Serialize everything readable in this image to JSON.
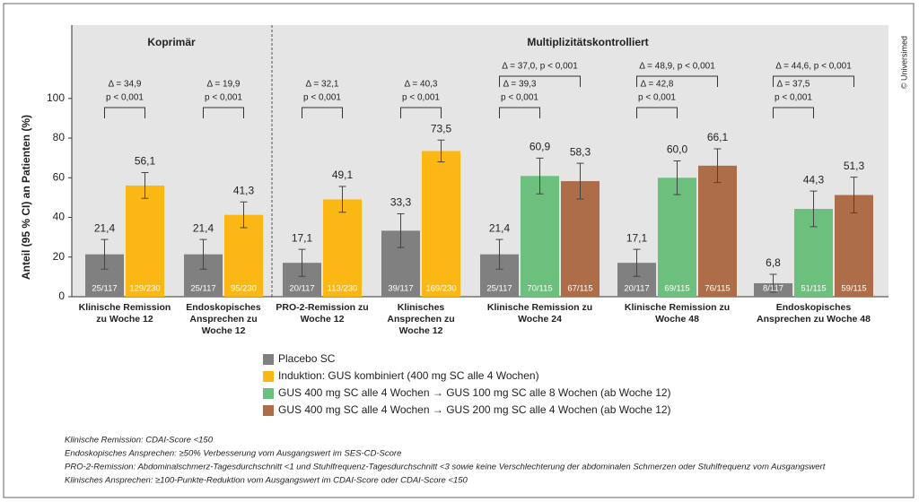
{
  "chart_data": {
    "type": "bar",
    "sections": [
      "Koprimär",
      "Multiplizitätskontrolliert"
    ],
    "ylabel": "Anteil (95 % CI) an Patienten (%)",
    "ylim": [
      0,
      137
    ],
    "yticks": [
      0,
      20,
      40,
      60,
      80,
      100
    ],
    "categories": [
      "Klinische Remission zu Woche 12",
      "Endoskopisches Ansprechen zu Woche 12",
      "PRO-2-Remission zu Woche 12",
      "Klinisches Ansprechen zu Woche 12",
      "Klinische Remission zu Woche 24",
      "Klinische Remission zu Woche 48",
      "Endoskopisches Ansprechen zu Woche 48"
    ],
    "series": [
      {
        "name": "Placebo SC",
        "color": "#808080",
        "values": [
          21.4,
          21.4,
          17.1,
          33.3,
          21.4,
          17.1,
          6.8
        ],
        "value_labels": [
          "21,4",
          "21,4",
          "17,1",
          "33,3",
          "21,4",
          "17,1",
          "6,8"
        ],
        "errors": [
          7.5,
          7.5,
          6.8,
          8.5,
          7.5,
          6.8,
          4.5
        ],
        "counts": [
          "25/117",
          "25/117",
          "20/117",
          "39/117",
          "25/117",
          "20/117",
          "8/117"
        ]
      },
      {
        "name": "Induktion: GUS kombiniert (400 mg SC alle 4 Wochen)",
        "color": "#fbb814",
        "values": [
          56.1,
          41.3,
          49.1,
          73.5,
          null,
          null,
          null
        ],
        "value_labels": [
          "56,1",
          "41,3",
          "49,1",
          "73,5",
          null,
          null,
          null
        ],
        "errors": [
          6.5,
          6.5,
          6.5,
          5.5,
          null,
          null,
          null
        ],
        "counts": [
          "129/230",
          "95/230",
          "113/230",
          "169/230",
          null,
          null,
          null
        ]
      },
      {
        "name": "GUS 400 mg SC alle 4 Wochen → GUS 100 mg SC alle 8 Wochen (ab Woche 12)",
        "color": "#6cbf7d",
        "values": [
          null,
          null,
          null,
          null,
          60.9,
          60.0,
          44.3
        ],
        "value_labels": [
          null,
          null,
          null,
          null,
          "60,9",
          "60,0",
          "44,3"
        ],
        "errors": [
          null,
          null,
          null,
          null,
          9,
          8.5,
          9
        ],
        "counts": [
          null,
          null,
          null,
          null,
          "70/115",
          "69/115",
          "51/115"
        ]
      },
      {
        "name": "GUS 400 mg SC alle 4 Wochen → GUS 200 mg SC alle 4 Wochen (ab Woche 12)",
        "color": "#ad6d48",
        "values": [
          null,
          null,
          null,
          null,
          58.3,
          66.1,
          51.3
        ],
        "value_labels": [
          null,
          null,
          null,
          null,
          "58,3",
          "66,1",
          "51,3"
        ],
        "errors": [
          null,
          null,
          null,
          null,
          9,
          8.5,
          9
        ],
        "counts": [
          null,
          null,
          null,
          null,
          "67/115",
          "76/115",
          "59/115"
        ]
      }
    ],
    "comparisons": [
      [
        [
          "Δ = 34,9",
          "p < 0,001"
        ]
      ],
      [
        [
          "Δ = 19,9",
          "p < 0,001"
        ]
      ],
      [
        [
          "Δ = 32,1",
          "p < 0,001"
        ]
      ],
      [
        [
          "Δ = 40,3",
          "p < 0,001"
        ]
      ],
      [
        [
          "Δ = 39,3",
          "p < 0,001"
        ],
        [
          "Δ = 37,0, p < 0,001"
        ]
      ],
      [
        [
          "Δ = 42,8",
          "p < 0,001"
        ],
        [
          "Δ = 48,9, p < 0,001"
        ]
      ],
      [
        [
          "Δ = 37,5",
          "p < 0,001"
        ],
        [
          "Δ = 44,6, p < 0,001"
        ]
      ]
    ],
    "footnotes": [
      "Klinische Remission: CDAI-Score <150",
      "Endoskopisches Ansprechen: ≥50% Verbesserung vom Ausgangswert im SES-CD-Score",
      "PRO-2-Remission: Abdominalschmerz-Tagesdurchschnitt <1 und Stuhlfrequenz-Tagesdurchschnitt <3 sowie keine Verschlechterung der abdominalen Schmerzen oder Stuhlfrequenz vom Ausgangswert",
      "Klinisches Ansprechen: ≥100-Punkte-Reduktion vom Ausgangswert im CDAI-Score oder CDAI-Score <150"
    ],
    "copyright": "© Universimed"
  }
}
